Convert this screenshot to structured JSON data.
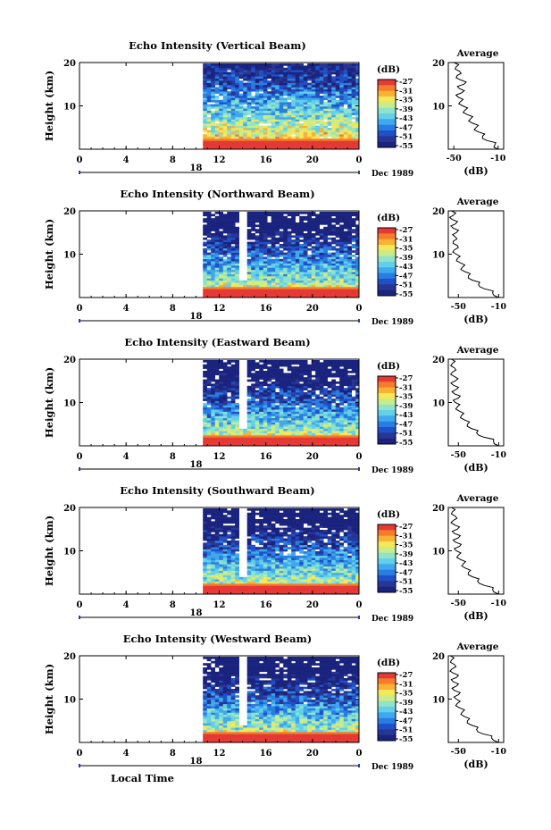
{
  "colors": {
    "scale": [
      "#1a237e",
      "#283593",
      "#1e50c8",
      "#2a7de0",
      "#3fa8ee",
      "#63cfe8",
      "#8fe3c8",
      "#c8ec8a",
      "#f4e75a",
      "#f9b233",
      "#f57c2a",
      "#e53935"
    ],
    "white": "#ffffff",
    "axis": "#000000",
    "time_bar": "#2b3a9c"
  },
  "figure": {
    "xlabel": "Local Time",
    "date_label": "Dec 1989",
    "day_label": "18"
  },
  "chart_data": [
    {
      "type": "heatmap",
      "title": "Echo Intensity (Vertical Beam)",
      "ylabel": "Height (km)",
      "x_ticks": [
        "0",
        "4",
        "8",
        "12",
        "16",
        "20",
        "0"
      ],
      "y_ticks": [
        "20",
        "10"
      ],
      "xlim": [
        0,
        24
      ],
      "ylim": [
        0,
        20
      ],
      "data_start_hour": 10.6,
      "gap": null,
      "colorbar": {
        "unit": "(dB)",
        "ticks": [
          "-27",
          "-31",
          "-35",
          "-39",
          "-43",
          "-47",
          "-51",
          "-55"
        ]
      },
      "profile": {
        "title": "Average",
        "xlabel": "(dB)",
        "x_ticks": [
          "-50",
          "-10"
        ],
        "xlim": [
          -55,
          -5
        ],
        "y_ticks": [
          "20",
          "10"
        ],
        "points": [
          [
            -10,
            0
          ],
          [
            -13,
            1
          ],
          [
            -20,
            2
          ],
          [
            -24,
            3
          ],
          [
            -28,
            4
          ],
          [
            -30,
            5
          ],
          [
            -33,
            6
          ],
          [
            -35,
            7
          ],
          [
            -38,
            8
          ],
          [
            -40,
            9
          ],
          [
            -42,
            10
          ],
          [
            -44,
            11
          ],
          [
            -46,
            12
          ],
          [
            -43,
            13
          ],
          [
            -45,
            14
          ],
          [
            -41,
            15
          ],
          [
            -44,
            16
          ],
          [
            -47,
            17
          ],
          [
            -45,
            18
          ],
          [
            -48,
            19
          ],
          [
            -50,
            20
          ]
        ]
      }
    },
    {
      "type": "heatmap",
      "title": "Echo Intensity (Northward Beam)",
      "ylabel": "Height (km)",
      "x_ticks": [
        "0",
        "4",
        "8",
        "12",
        "16",
        "20",
        "0"
      ],
      "y_ticks": [
        "20",
        "10"
      ],
      "xlim": [
        0,
        24
      ],
      "ylim": [
        0,
        20
      ],
      "data_start_hour": 10.6,
      "gap": [
        13.5,
        14.2
      ],
      "colorbar": {
        "unit": "(dB)",
        "ticks": [
          "-27",
          "-31",
          "-35",
          "-39",
          "-43",
          "-47",
          "-51",
          "-55"
        ]
      },
      "profile": {
        "title": "Average",
        "xlabel": "(dB)",
        "x_ticks": [
          "-50",
          "-10"
        ],
        "xlim": [
          -60,
          -5
        ],
        "y_ticks": [
          "20",
          "10"
        ],
        "points": [
          [
            -10,
            0
          ],
          [
            -16,
            1
          ],
          [
            -24,
            2
          ],
          [
            -30,
            3
          ],
          [
            -36,
            4
          ],
          [
            -40,
            5
          ],
          [
            -44,
            6
          ],
          [
            -46,
            7
          ],
          [
            -48,
            8
          ],
          [
            -51,
            9
          ],
          [
            -52,
            10
          ],
          [
            -54,
            11
          ],
          [
            -51,
            12
          ],
          [
            -55,
            13
          ],
          [
            -53,
            14
          ],
          [
            -52,
            15
          ],
          [
            -55,
            16
          ],
          [
            -53,
            17
          ],
          [
            -56,
            18
          ],
          [
            -55,
            19
          ],
          [
            -57,
            20
          ]
        ]
      }
    },
    {
      "type": "heatmap",
      "title": "Echo Intensity (Eastward Beam)",
      "ylabel": "Height (km)",
      "x_ticks": [
        "0",
        "4",
        "8",
        "12",
        "16",
        "20",
        "0"
      ],
      "y_ticks": [
        "20",
        "10"
      ],
      "xlim": [
        0,
        24
      ],
      "ylim": [
        0,
        20
      ],
      "data_start_hour": 10.6,
      "gap": [
        13.5,
        14.2
      ],
      "colorbar": {
        "unit": "(dB)",
        "ticks": [
          "-27",
          "-31",
          "-35",
          "-39",
          "-43",
          "-47",
          "-51",
          "-55"
        ]
      },
      "profile": {
        "title": "Average",
        "xlabel": "(dB)",
        "x_ticks": [
          "-50",
          "-10"
        ],
        "xlim": [
          -60,
          -5
        ],
        "y_ticks": [
          "20",
          "10"
        ],
        "points": [
          [
            -10,
            0
          ],
          [
            -15,
            1
          ],
          [
            -25,
            2
          ],
          [
            -32,
            3
          ],
          [
            -37,
            4
          ],
          [
            -41,
            5
          ],
          [
            -44,
            6
          ],
          [
            -47,
            7
          ],
          [
            -49,
            8
          ],
          [
            -51,
            9
          ],
          [
            -53,
            10
          ],
          [
            -50,
            11
          ],
          [
            -54,
            12
          ],
          [
            -52,
            13
          ],
          [
            -55,
            14
          ],
          [
            -53,
            15
          ],
          [
            -54,
            16
          ],
          [
            -56,
            17
          ],
          [
            -54,
            18
          ],
          [
            -56,
            19
          ],
          [
            -57,
            20
          ]
        ]
      }
    },
    {
      "type": "heatmap",
      "title": "Echo Intensity (Southward Beam)",
      "ylabel": "Height (km)",
      "x_ticks": [
        "0",
        "4",
        "8",
        "12",
        "16",
        "20",
        "0"
      ],
      "y_ticks": [
        "20",
        "10"
      ],
      "xlim": [
        0,
        24
      ],
      "ylim": [
        0,
        20
      ],
      "data_start_hour": 10.6,
      "gap": [
        13.5,
        14.2
      ],
      "colorbar": {
        "unit": "(dB)",
        "ticks": [
          "-27",
          "-31",
          "-35",
          "-39",
          "-43",
          "-47",
          "-51",
          "-55"
        ]
      },
      "profile": {
        "title": "Average",
        "xlabel": "(dB)",
        "x_ticks": [
          "-50",
          "-10"
        ],
        "xlim": [
          -60,
          -5
        ],
        "y_ticks": [
          "20",
          "10"
        ],
        "points": [
          [
            -10,
            0
          ],
          [
            -16,
            1
          ],
          [
            -24,
            2
          ],
          [
            -31,
            3
          ],
          [
            -36,
            4
          ],
          [
            -40,
            5
          ],
          [
            -43,
            6
          ],
          [
            -45,
            7
          ],
          [
            -48,
            8
          ],
          [
            -50,
            9
          ],
          [
            -52,
            10
          ],
          [
            -49,
            11
          ],
          [
            -53,
            12
          ],
          [
            -50,
            13
          ],
          [
            -54,
            14
          ],
          [
            -51,
            15
          ],
          [
            -54,
            16
          ],
          [
            -55,
            17
          ],
          [
            -53,
            18
          ],
          [
            -56,
            19
          ],
          [
            -57,
            20
          ]
        ]
      }
    },
    {
      "type": "heatmap",
      "title": "Echo Intensity (Westward Beam)",
      "ylabel": "Height (km)",
      "x_ticks": [
        "0",
        "4",
        "8",
        "12",
        "16",
        "20",
        "0"
      ],
      "y_ticks": [
        "20",
        "10"
      ],
      "xlim": [
        0,
        24
      ],
      "ylim": [
        0,
        20
      ],
      "data_start_hour": 10.6,
      "gap": [
        13.6,
        14.1
      ],
      "colorbar": {
        "unit": "(dB)",
        "ticks": [
          "-27",
          "-31",
          "-35",
          "-39",
          "-43",
          "-47",
          "-51",
          "-55"
        ]
      },
      "profile": {
        "title": "Average",
        "xlabel": "(dB)",
        "x_ticks": [
          "-50",
          "-10"
        ],
        "xlim": [
          -60,
          -5
        ],
        "y_ticks": [
          "20",
          "10"
        ],
        "points": [
          [
            -10,
            0
          ],
          [
            -17,
            1
          ],
          [
            -26,
            2
          ],
          [
            -32,
            3
          ],
          [
            -37,
            4
          ],
          [
            -41,
            5
          ],
          [
            -44,
            6
          ],
          [
            -46,
            7
          ],
          [
            -49,
            8
          ],
          [
            -51,
            9
          ],
          [
            -52,
            10
          ],
          [
            -50,
            11
          ],
          [
            -54,
            12
          ],
          [
            -52,
            13
          ],
          [
            -55,
            14
          ],
          [
            -52,
            15
          ],
          [
            -55,
            16
          ],
          [
            -56,
            17
          ],
          [
            -54,
            18
          ],
          [
            -57,
            19
          ],
          [
            -58,
            20
          ]
        ]
      }
    }
  ]
}
